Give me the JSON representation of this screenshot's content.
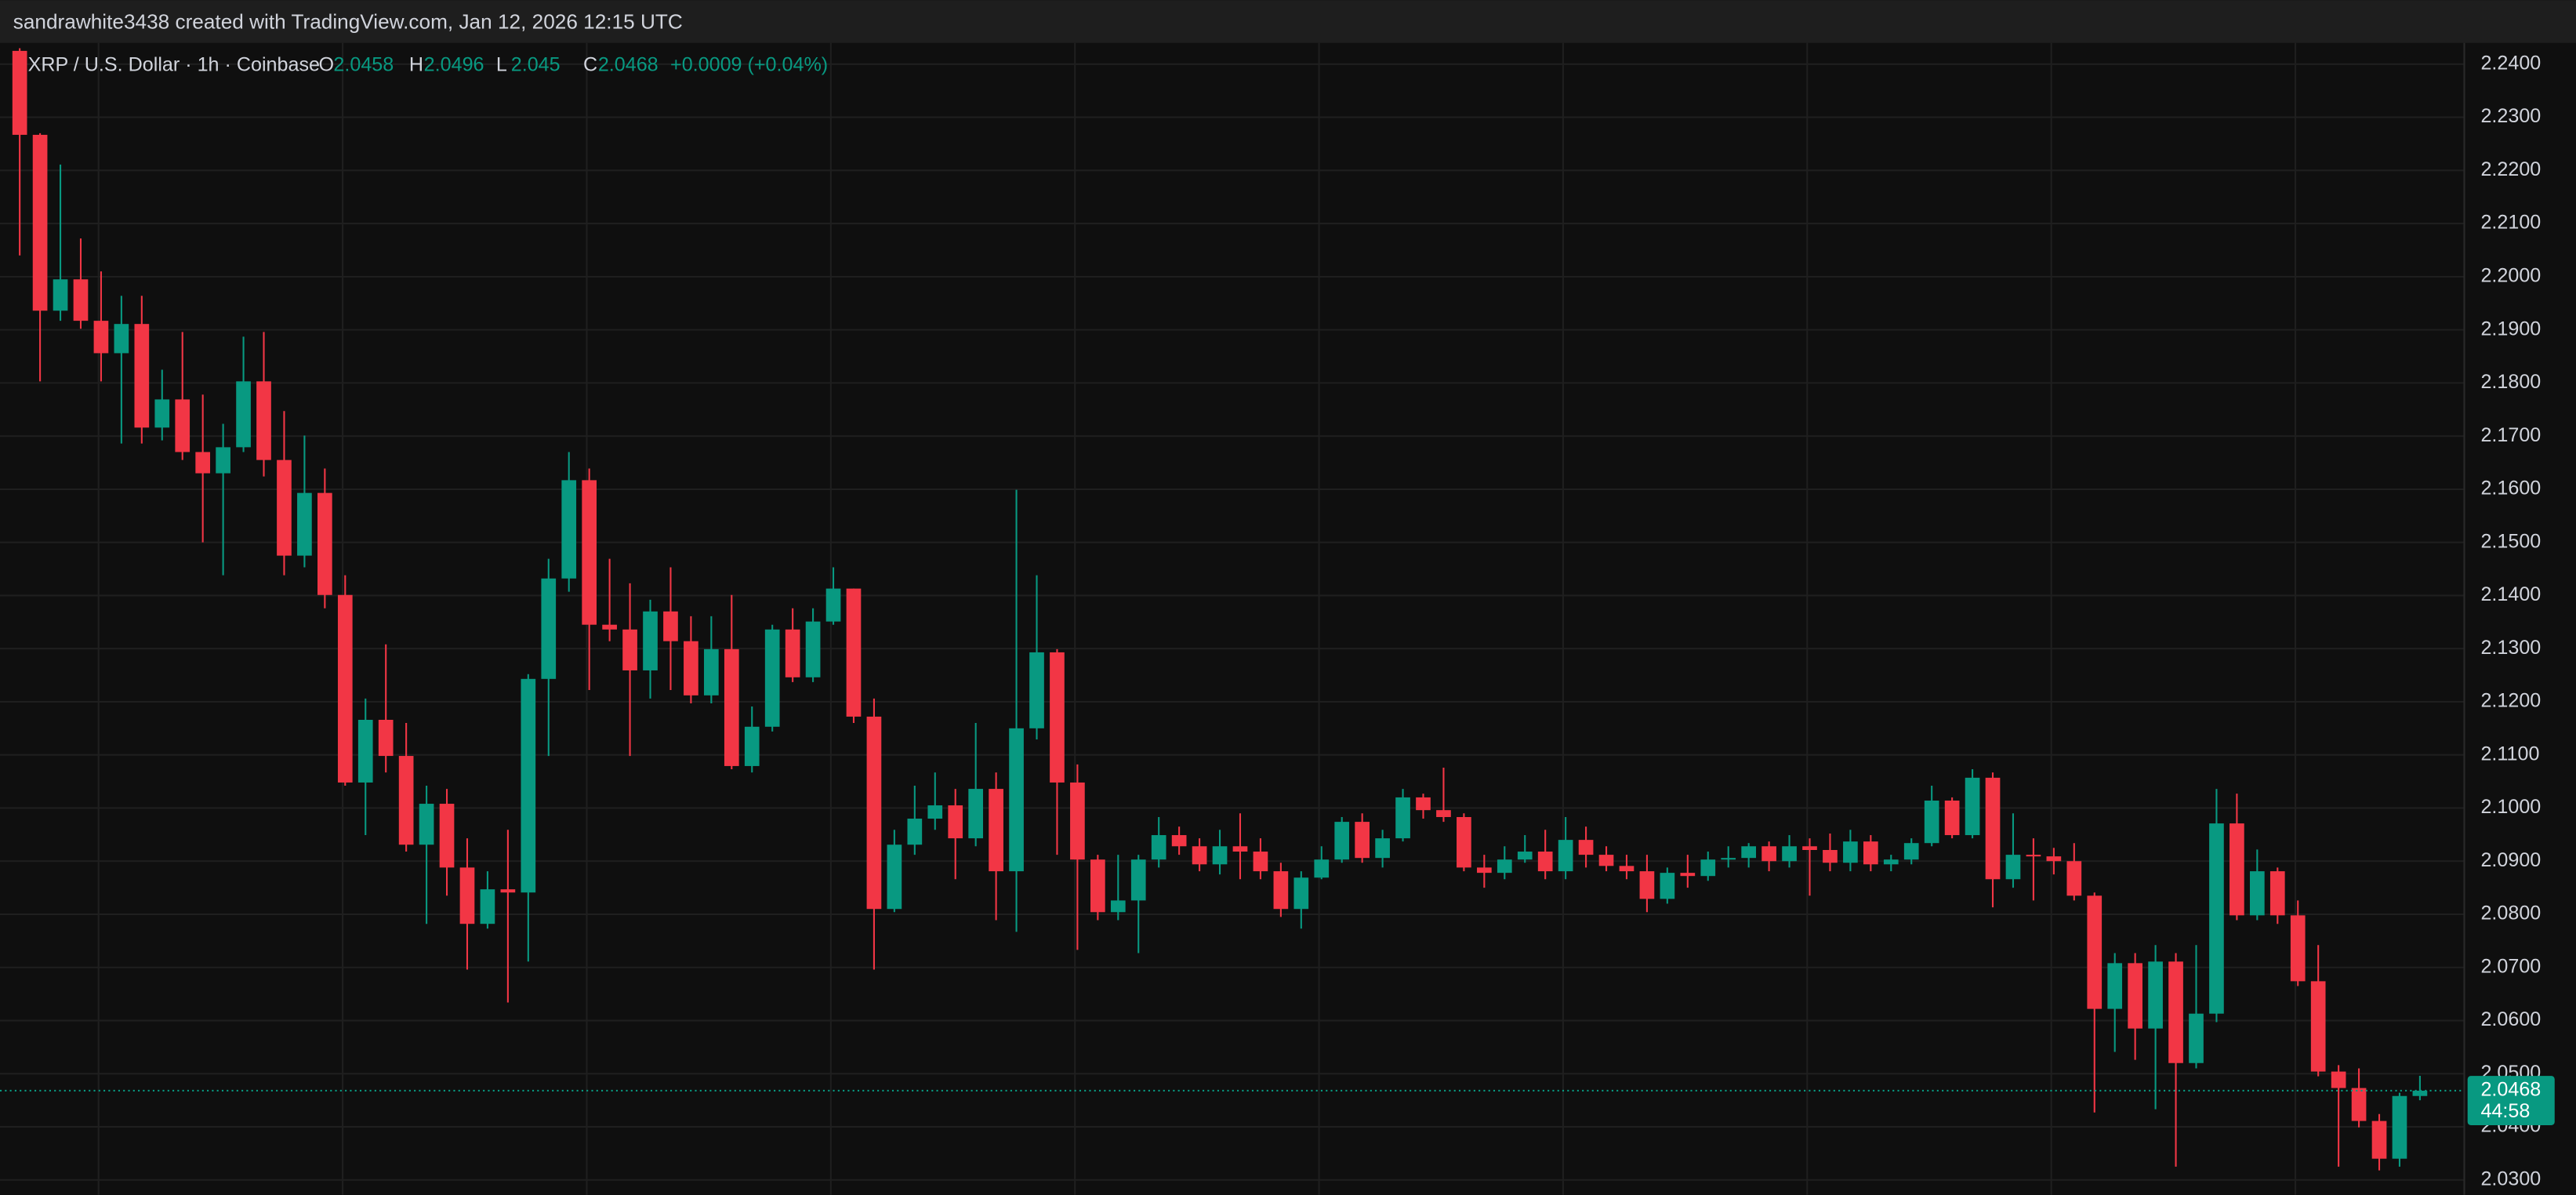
{
  "header": {
    "text": "sandrawhite3438 created with TradingView.com, Jan 12, 2026 12:15 UTC"
  },
  "chart_data": {
    "type": "candlestick",
    "title": "XRP / U.S. Dollar · 1h · Coinbase",
    "ohlc_labels": [
      "O",
      "H",
      "L",
      "C"
    ],
    "change": "+0.0009 (+0.04%)",
    "countdown": "44:58",
    "up_color": "#089981",
    "down_color": "#f23645",
    "grid": true,
    "ylim": [
      2.0272,
      2.244
    ],
    "yticks": [
      {
        "value": 2.24,
        "label": "2.2400"
      },
      {
        "value": 2.23,
        "label": "2.2300"
      },
      {
        "value": 2.22,
        "label": "2.2200"
      },
      {
        "value": 2.21,
        "label": "2.2100"
      },
      {
        "value": 2.2,
        "label": "2.2000"
      },
      {
        "value": 2.19,
        "label": "2.1900"
      },
      {
        "value": 2.18,
        "label": "2.1800"
      },
      {
        "value": 2.17,
        "label": "2.1700"
      },
      {
        "value": 2.16,
        "label": "2.1600"
      },
      {
        "value": 2.15,
        "label": "2.1500"
      },
      {
        "value": 2.14,
        "label": "2.1400"
      },
      {
        "value": 2.13,
        "label": "2.1300"
      },
      {
        "value": 2.12,
        "label": "2.1200"
      },
      {
        "value": 2.11,
        "label": "2.1100"
      },
      {
        "value": 2.1,
        "label": "2.1000"
      },
      {
        "value": 2.09,
        "label": "2.0900"
      },
      {
        "value": 2.08,
        "label": "2.0800"
      },
      {
        "value": 2.07,
        "label": "2.0700"
      },
      {
        "value": 2.06,
        "label": "2.0600"
      },
      {
        "value": 2.05,
        "label": "2.0500"
      },
      {
        "value": 2.04,
        "label": "2.0400"
      },
      {
        "value": 2.03,
        "label": "2.0300"
      }
    ],
    "open": [
      2.2425,
      2.2267,
      2.1936,
      2.1995,
      2.1917,
      2.1856,
      2.1911,
      2.1716,
      2.1769,
      2.167,
      2.163,
      2.1679,
      2.1803,
      2.1655,
      2.1475,
      2.1593,
      2.1401,
      2.1048,
      2.1166,
      2.1098,
      2.0931,
      2.1008,
      2.0888,
      2.0782,
      2.0847,
      2.0841,
      2.1243,
      2.1432,
      2.1617,
      2.1345,
      2.1336,
      2.1259,
      2.137,
      2.1314,
      2.1212,
      2.1299,
      2.1079,
      2.1153,
      2.1336,
      2.1246,
      2.1351,
      2.1413,
      2.1172,
      2.081,
      2.0931,
      2.098,
      2.1005,
      2.0943,
      2.1036,
      2.0881,
      2.115,
      2.1293,
      2.1048,
      2.0903,
      2.0804,
      2.0826,
      2.0903,
      2.0949,
      2.0928,
      2.0894,
      2.0928,
      2.0918,
      2.0881,
      2.081,
      2.0869,
      2.0903,
      2.0974,
      2.0906,
      2.0943,
      2.102,
      2.0996,
      2.0983,
      2.0888,
      2.0878,
      2.0903,
      2.0918,
      2.0881,
      2.094,
      2.0912,
      2.0891,
      2.0881,
      2.0829,
      2.0878,
      2.0872,
      2.0903,
      2.0906,
      2.0928,
      2.09,
      2.0928,
      2.0921,
      2.0897,
      2.0937,
      2.0894,
      2.0903,
      2.0934,
      2.1014,
      2.0949,
      2.1057,
      2.0866,
      2.0912,
      2.0909,
      2.09,
      2.0835,
      2.0622,
      2.0708,
      2.0585,
      2.0711,
      2.052,
      2.0613,
      2.0971,
      2.0798,
      2.0881,
      2.0798,
      2.0674,
      2.0504,
      2.0473,
      2.0411,
      2.034,
      2.0458
    ],
    "high": [
      2.243,
      2.227,
      2.2211,
      2.2072,
      2.201,
      2.1964,
      2.1964,
      2.1825,
      2.1896,
      2.1778,
      2.1723,
      2.1887,
      2.1896,
      2.1747,
      2.1701,
      2.1639,
      2.1438,
      2.1206,
      2.1308,
      2.116,
      2.1042,
      2.1036,
      2.0943,
      2.0881,
      2.0959,
      2.1252,
      2.1469,
      2.167,
      2.1639,
      2.1469,
      2.1423,
      2.1392,
      2.1453,
      2.1361,
      2.1361,
      2.1401,
      2.1191,
      2.1345,
      2.1376,
      2.1376,
      2.1453,
      2.1413,
      2.1206,
      2.0959,
      2.1042,
      2.1067,
      2.1036,
      2.116,
      2.1067,
      2.1599,
      2.1438,
      2.1299,
      2.1082,
      2.0912,
      2.0912,
      2.0912,
      2.0983,
      2.0965,
      2.0943,
      2.0959,
      2.099,
      2.0943,
      2.0897,
      2.0881,
      2.0928,
      2.0983,
      2.099,
      2.0959,
      2.1036,
      2.1027,
      2.1076,
      2.099,
      2.0912,
      2.0928,
      2.0949,
      2.0959,
      2.0983,
      2.0965,
      2.0928,
      2.0912,
      2.0912,
      2.0888,
      2.0912,
      2.0918,
      2.0928,
      2.0934,
      2.0937,
      2.0949,
      2.0943,
      2.0952,
      2.0959,
      2.0949,
      2.0912,
      2.0943,
      2.1042,
      2.102,
      2.1073,
      2.1067,
      2.099,
      2.0943,
      2.0925,
      2.0934,
      2.0841,
      2.0727,
      2.0727,
      2.0742,
      2.0727,
      2.0742,
      2.1036,
      2.1027,
      2.0922,
      2.0888,
      2.0826,
      2.0742,
      2.0516,
      2.051,
      2.0424,
      2.0464,
      2.0496
    ],
    "low": [
      2.204,
      2.1803,
      2.1917,
      2.1902,
      2.1803,
      2.1686,
      2.1686,
      2.1692,
      2.1655,
      2.15,
      2.1438,
      2.167,
      2.1624,
      2.1438,
      2.1453,
      2.1376,
      2.1042,
      2.0949,
      2.1067,
      2.0918,
      2.0782,
      2.0835,
      2.0696,
      2.0773,
      2.0634,
      2.0711,
      2.1098,
      2.1407,
      2.1222,
      2.1314,
      2.1098,
      2.1206,
      2.1222,
      2.1197,
      2.1197,
      2.1073,
      2.1067,
      2.1144,
      2.1237,
      2.1237,
      2.1345,
      2.116,
      2.0696,
      2.0804,
      2.0912,
      2.0959,
      2.0866,
      2.0928,
      2.0789,
      2.0767,
      2.1129,
      2.0912,
      2.0733,
      2.0789,
      2.0789,
      2.0727,
      2.0888,
      2.0912,
      2.0881,
      2.0875,
      2.0866,
      2.0866,
      2.0795,
      2.0773,
      2.0866,
      2.0897,
      2.0897,
      2.0888,
      2.0937,
      2.098,
      2.0974,
      2.0881,
      2.085,
      2.0866,
      2.0897,
      2.0866,
      2.0866,
      2.0888,
      2.0881,
      2.0866,
      2.0804,
      2.082,
      2.085,
      2.0863,
      2.0888,
      2.0888,
      2.0881,
      2.0888,
      2.0835,
      2.0881,
      2.0881,
      2.0881,
      2.0881,
      2.0894,
      2.0928,
      2.0943,
      2.0943,
      2.0813,
      2.085,
      2.0826,
      2.0875,
      2.0826,
      2.0427,
      2.0541,
      2.0526,
      2.0433,
      2.0325,
      2.051,
      2.0597,
      2.0789,
      2.0789,
      2.0782,
      2.0665,
      2.0495,
      2.0325,
      2.0399,
      2.0318,
      2.0325,
      2.045
    ],
    "close": [
      2.2267,
      2.1936,
      2.1995,
      2.1917,
      2.1856,
      2.1911,
      2.1716,
      2.1769,
      2.167,
      2.163,
      2.1679,
      2.1803,
      2.1655,
      2.1475,
      2.1593,
      2.1401,
      2.1048,
      2.1166,
      2.1098,
      2.0931,
      2.1008,
      2.0888,
      2.0782,
      2.0847,
      2.0841,
      2.1243,
      2.1432,
      2.1617,
      2.1345,
      2.1336,
      2.1259,
      2.137,
      2.1314,
      2.1212,
      2.1299,
      2.1079,
      2.1153,
      2.1336,
      2.1246,
      2.1351,
      2.1413,
      2.1172,
      2.081,
      2.0931,
      2.098,
      2.1005,
      2.0943,
      2.1036,
      2.0881,
      2.115,
      2.1293,
      2.1048,
      2.0903,
      2.0804,
      2.0826,
      2.0903,
      2.0949,
      2.0928,
      2.0894,
      2.0928,
      2.0918,
      2.0881,
      2.081,
      2.0869,
      2.0903,
      2.0974,
      2.0906,
      2.0943,
      2.102,
      2.0996,
      2.0983,
      2.0888,
      2.0878,
      2.0903,
      2.0918,
      2.0881,
      2.094,
      2.0912,
      2.0891,
      2.0881,
      2.0829,
      2.0878,
      2.0872,
      2.0903,
      2.0906,
      2.0928,
      2.09,
      2.0928,
      2.0921,
      2.0897,
      2.0937,
      2.0894,
      2.0903,
      2.0934,
      2.1014,
      2.0949,
      2.1057,
      2.0866,
      2.0912,
      2.0909,
      2.09,
      2.0835,
      2.0622,
      2.0708,
      2.0585,
      2.0711,
      2.052,
      2.0613,
      2.0971,
      2.0798,
      2.0881,
      2.0798,
      2.0674,
      2.0504,
      2.0473,
      2.0411,
      2.034,
      2.0458,
      2.0468
    ]
  }
}
